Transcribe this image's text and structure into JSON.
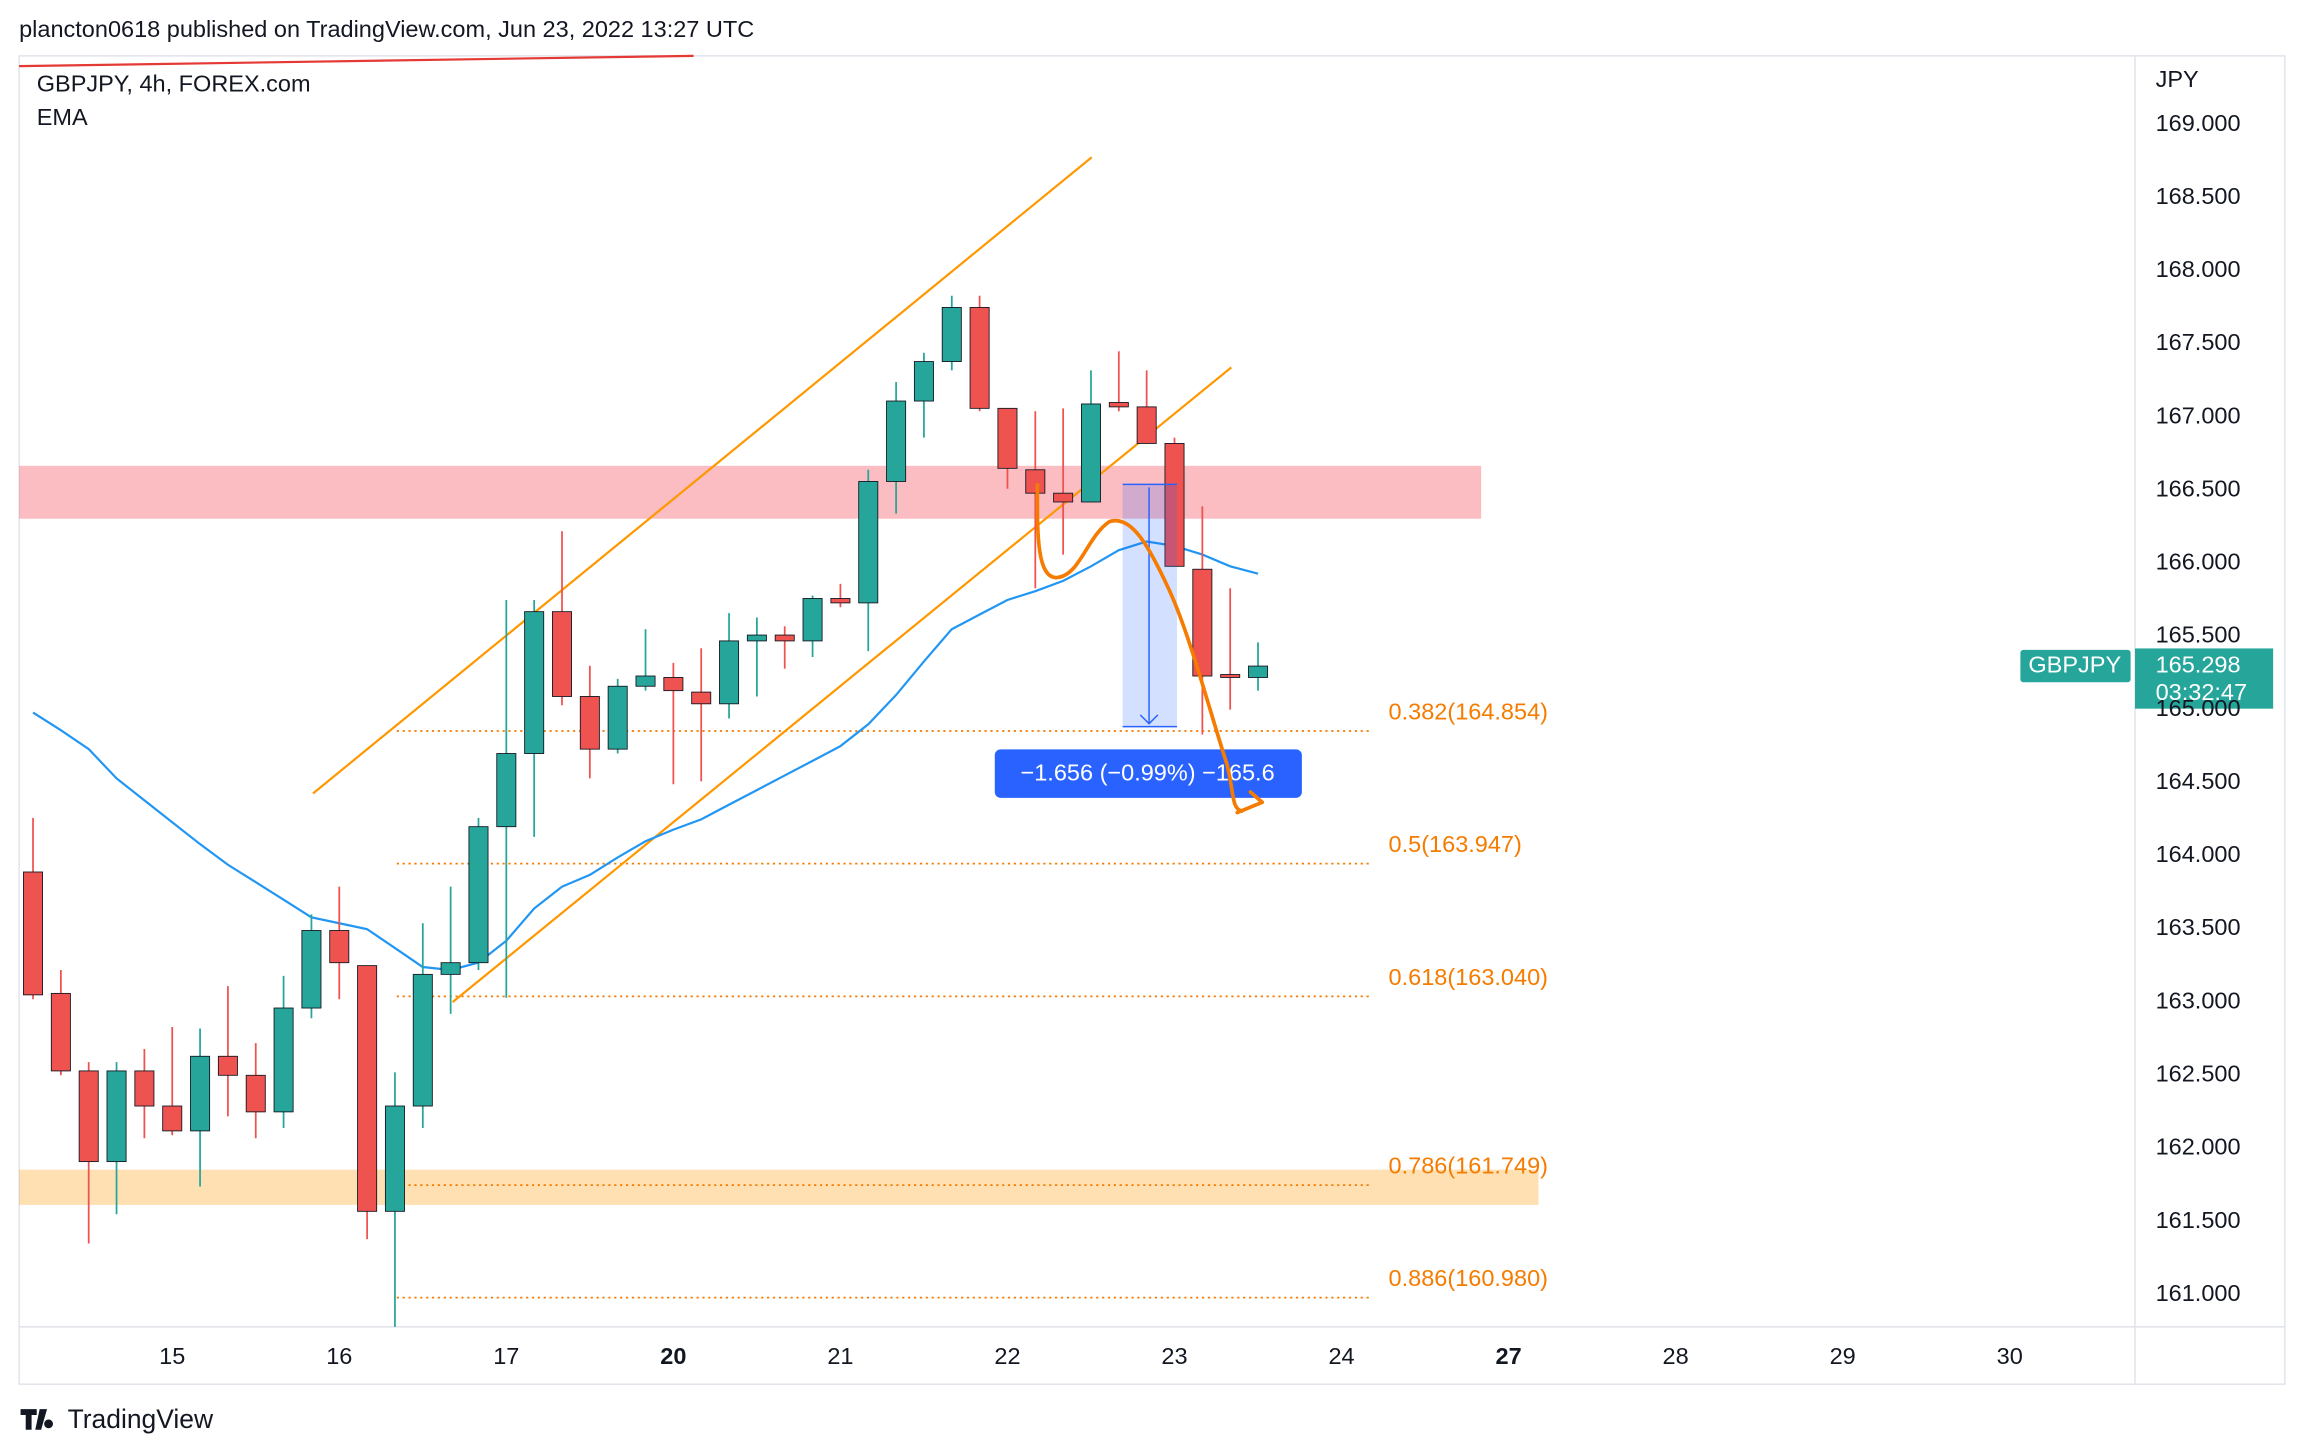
{
  "header": {
    "published": "plancton0618 published on TradingView.com, Jun 23, 2022 13:27 UTC",
    "symbol": "GBPJPY, 4h, FOREX.com",
    "indicator": "EMA",
    "currency": "JPY",
    "brand": "TradingView"
  },
  "chart_data": {
    "type": "candlestick",
    "categories": [
      null,
      null,
      null,
      null,
      null,
      "15",
      null,
      null,
      null,
      null,
      null,
      "16",
      null,
      null,
      null,
      null,
      null,
      "17",
      null,
      null,
      null,
      null,
      null,
      "20",
      null,
      null,
      null,
      null,
      null,
      "21",
      null,
      null,
      null,
      null,
      null,
      "22",
      null,
      null,
      null,
      null,
      null,
      "23",
      null,
      null,
      null,
      null,
      null,
      "24",
      null,
      null,
      null,
      null,
      null,
      "27",
      null,
      null,
      null,
      null,
      null,
      "28",
      null,
      null,
      null,
      null,
      null,
      "29",
      null,
      null,
      null,
      null,
      null,
      "30",
      null,
      null,
      null,
      null
    ],
    "bold_categories": [
      "20",
      "27"
    ],
    "open": [
      163.89,
      163.06,
      162.53,
      161.91,
      162.53,
      162.29,
      162.12,
      162.63,
      162.5,
      162.25,
      162.96,
      163.49,
      163.25,
      161.57,
      162.29,
      163.19,
      163.27,
      164.2,
      164.7,
      165.67,
      165.09,
      164.73,
      165.16,
      165.22,
      165.12,
      165.04,
      165.47,
      165.51,
      165.47,
      165.76,
      165.73,
      166.56,
      167.11,
      167.38,
      167.75,
      167.06,
      166.64,
      166.48,
      166.42,
      167.1,
      167.07,
      166.82,
      165.96,
      165.24,
      165.22,
      null,
      null,
      null,
      null,
      null,
      null,
      null,
      null,
      null,
      null,
      null,
      null,
      null,
      null,
      null,
      null,
      null,
      null,
      null,
      null,
      null,
      null,
      null,
      null,
      null,
      null,
      null,
      null,
      null,
      null,
      null
    ],
    "high": [
      164.26,
      163.22,
      162.59,
      162.59,
      162.68,
      162.83,
      162.82,
      163.11,
      162.72,
      163.18,
      163.6,
      163.79,
      163.25,
      162.52,
      163.54,
      163.79,
      164.26,
      165.75,
      165.75,
      166.22,
      165.3,
      165.21,
      165.55,
      165.32,
      165.42,
      165.66,
      165.63,
      165.57,
      165.78,
      165.86,
      166.64,
      167.24,
      167.44,
      167.83,
      167.83,
      167.06,
      167.04,
      167.06,
      167.32,
      167.45,
      167.32,
      166.86,
      166.39,
      165.83,
      165.46,
      null,
      null,
      null,
      null,
      null,
      null,
      null,
      null,
      null,
      null,
      null,
      null,
      null,
      null,
      null,
      null,
      null,
      null,
      null,
      null,
      null,
      null,
      null,
      null,
      null,
      null,
      null,
      null,
      null,
      null,
      null
    ],
    "low": [
      163.02,
      162.5,
      161.35,
      161.55,
      162.07,
      162.09,
      161.74,
      162.22,
      162.07,
      162.14,
      162.89,
      163.02,
      161.38,
      160.78,
      162.14,
      162.92,
      163.22,
      163.03,
      164.13,
      165.03,
      164.53,
      164.7,
      165.13,
      164.49,
      164.51,
      164.94,
      165.09,
      165.28,
      165.36,
      165.7,
      165.4,
      166.34,
      166.86,
      167.32,
      167.04,
      166.51,
      165.83,
      166.06,
      166.42,
      167.04,
      166.82,
      165.98,
      164.83,
      165.0,
      165.13,
      null,
      null,
      null,
      null,
      null,
      null,
      null,
      null,
      null,
      null,
      null,
      null,
      null,
      null,
      null,
      null,
      null,
      null,
      null,
      null,
      null,
      null,
      null,
      null,
      null,
      null,
      null,
      null,
      null,
      null,
      null
    ],
    "close": [
      163.05,
      162.53,
      161.91,
      162.53,
      162.29,
      162.12,
      162.63,
      162.5,
      162.25,
      162.96,
      163.49,
      163.27,
      161.57,
      162.29,
      163.19,
      163.27,
      164.2,
      164.7,
      165.67,
      165.09,
      164.73,
      165.16,
      165.23,
      165.13,
      165.04,
      165.47,
      165.51,
      165.47,
      165.76,
      165.73,
      166.56,
      167.11,
      167.38,
      167.75,
      167.06,
      166.65,
      166.48,
      166.42,
      167.09,
      167.07,
      166.82,
      165.98,
      165.23,
      165.22,
      165.298,
      null,
      null,
      null,
      null,
      null,
      null,
      null,
      null,
      null,
      null,
      null,
      null,
      null,
      null,
      null,
      null,
      null,
      null,
      null,
      null,
      null,
      null,
      null,
      null,
      null,
      null,
      null,
      null,
      null,
      null,
      null
    ],
    "up_color": "#26a69a",
    "down_color": "#ef5350",
    "ema": {
      "name": "EMA",
      "color": "#2196f3",
      "values": [
        164.98,
        164.86,
        164.73,
        164.53,
        164.38,
        164.23,
        164.08,
        163.94,
        163.82,
        163.7,
        163.58,
        163.54,
        163.5,
        163.37,
        163.24,
        163.22,
        163.27,
        163.42,
        163.64,
        163.79,
        163.87,
        163.99,
        164.1,
        164.18,
        164.25,
        164.35,
        164.45,
        164.55,
        164.65,
        164.75,
        164.9,
        165.1,
        165.33,
        165.55,
        165.65,
        165.75,
        165.81,
        165.88,
        165.98,
        166.09,
        166.15,
        166.12,
        166.06,
        165.98,
        165.93,
        null,
        null,
        null,
        null,
        null,
        null,
        null,
        null,
        null,
        null,
        null,
        null,
        null,
        null,
        null,
        null,
        null,
        null,
        null,
        null,
        null,
        null,
        null,
        null,
        null,
        null,
        null,
        null,
        null,
        null,
        null
      ]
    },
    "ylim": [
      160.78,
      169.47
    ],
    "yticks": [
      {
        "value": 161,
        "label": "161.000"
      },
      {
        "value": 161.5,
        "label": "161.500"
      },
      {
        "value": 162,
        "label": "162.000"
      },
      {
        "value": 162.5,
        "label": "162.500"
      },
      {
        "value": 163,
        "label": "163.000"
      },
      {
        "value": 163.5,
        "label": "163.500"
      },
      {
        "value": 164,
        "label": "164.000"
      },
      {
        "value": 164.5,
        "label": "164.500"
      },
      {
        "value": 165,
        "label": "165.000"
      },
      {
        "value": 165.5,
        "label": "165.500"
      },
      {
        "value": 166,
        "label": "166.000"
      },
      {
        "value": 166.5,
        "label": "166.500"
      },
      {
        "value": 167,
        "label": "167.000"
      },
      {
        "value": 167.5,
        "label": "167.500"
      },
      {
        "value": 168,
        "label": "168.000"
      },
      {
        "value": 168.5,
        "label": "168.500"
      },
      {
        "value": 169,
        "label": "169.000"
      }
    ],
    "grid": false,
    "fib_levels": [
      {
        "value": 164.854,
        "label": "0.382(164.854)"
      },
      {
        "value": 163.947,
        "label": "0.5(163.947)"
      },
      {
        "value": 163.04,
        "label": "0.618(163.040)"
      },
      {
        "value": 161.749,
        "label": "0.786(161.749)"
      },
      {
        "value": 160.98,
        "label": "0.886(160.980)"
      }
    ],
    "fib_color": "#f57c00",
    "measure": {
      "from": 166.54,
      "to": 164.884,
      "label": "−1.656 (−0.99%) −165.6"
    },
    "last_price": {
      "name": "GBPJPY",
      "value": 165.298,
      "countdown": "03:32:47"
    }
  }
}
